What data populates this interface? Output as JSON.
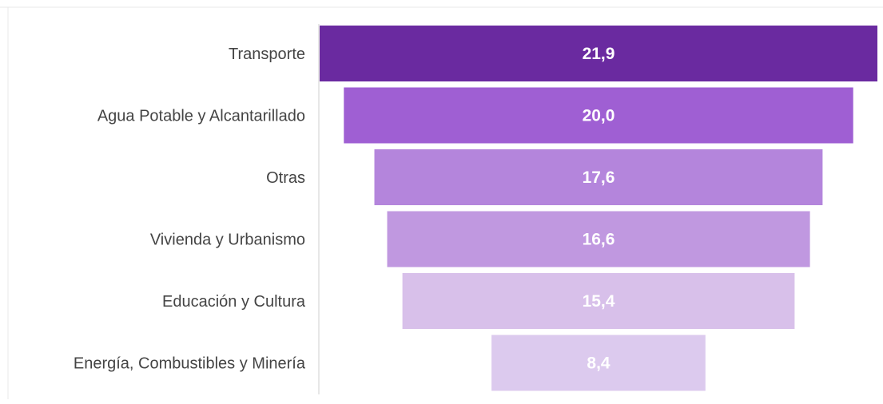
{
  "chart_data": {
    "type": "bar",
    "orientation": "horizontal-funnel",
    "categories": [
      "Transporte",
      "Agua Potable y Alcantarillado",
      "Otras",
      "Vivienda y Urbanismo",
      "Educación y Cultura",
      "Energía, Combustibles y Minería"
    ],
    "values": [
      21.9,
      20.0,
      17.6,
      16.6,
      15.4,
      8.4
    ],
    "value_labels": [
      "21,9",
      "20,0",
      "17,6",
      "16,6",
      "15,4",
      "8,4"
    ],
    "colors": [
      "#6a2aa0",
      "#9f5fd3",
      "#b485dc",
      "#c098e0",
      "#d8c0ea",
      "#dccaee"
    ],
    "title": "",
    "xlabel": "",
    "ylabel": "",
    "grid": false,
    "legend": "none"
  }
}
